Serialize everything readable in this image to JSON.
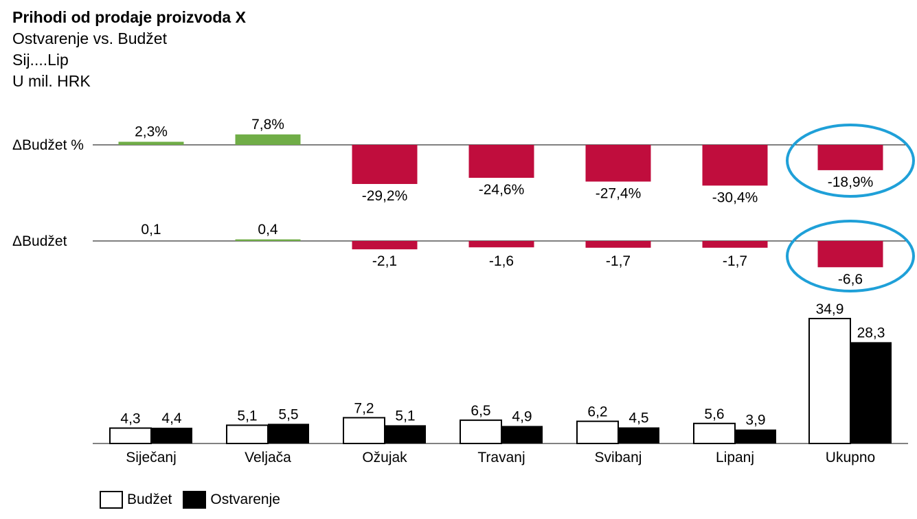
{
  "titles": {
    "main": "Prihodi od prodaje proizvoda X",
    "line2": "Ostvarenje vs. Budžet",
    "line3": "Sij....Lip",
    "line4": "U mil. HRK"
  },
  "legend": {
    "budget": "Budžet",
    "actual": "Ostvarenje"
  },
  "colors": {
    "positive": "#70ad47",
    "negative": "#c00d3d",
    "highlight": "#1fa0d8",
    "budget_fill": "#ffffff",
    "actual_fill": "#000000"
  },
  "chart_data": [
    {
      "type": "bar",
      "row_label": "ΔBudžet  %",
      "categories": [
        "Siječanj",
        "Veljača",
        "Ožujak",
        "Travanj",
        "Svibanj",
        "Lipanj",
        "Ukupno"
      ],
      "values": [
        2.3,
        7.8,
        -29.2,
        -24.6,
        -27.4,
        -30.4,
        -18.9
      ],
      "labels": [
        "2,3%",
        "7,8%",
        "-29,2%",
        "-24,6%",
        "-27,4%",
        "-30,4%",
        "-18,9%"
      ],
      "highlighted_category": "Ukupno"
    },
    {
      "type": "bar",
      "row_label": "ΔBudžet",
      "categories": [
        "Siječanj",
        "Veljača",
        "Ožujak",
        "Travanj",
        "Svibanj",
        "Lipanj",
        "Ukupno"
      ],
      "values": [
        0.1,
        0.4,
        -2.1,
        -1.6,
        -1.7,
        -1.7,
        -6.6
      ],
      "labels": [
        "0,1",
        "0,4",
        "-2,1",
        "-1,6",
        "-1,7",
        "-1,7",
        "-6,6"
      ],
      "highlighted_category": "Ukupno"
    },
    {
      "type": "bar",
      "categories": [
        "Siječanj",
        "Veljača",
        "Ožujak",
        "Travanj",
        "Svibanj",
        "Lipanj",
        "Ukupno"
      ],
      "series": [
        {
          "name": "Budžet",
          "values": [
            4.3,
            5.1,
            7.2,
            6.5,
            6.2,
            5.6,
            34.9
          ],
          "labels": [
            "4,3",
            "5,1",
            "7,2",
            "6,5",
            "6,2",
            "5,6",
            "34,9"
          ]
        },
        {
          "name": "Ostvarenje",
          "values": [
            4.4,
            5.5,
            5.1,
            4.9,
            4.5,
            3.9,
            28.3
          ],
          "labels": [
            "4,4",
            "5,5",
            "5,1",
            "4,9",
            "4,5",
            "3,9",
            "28,3"
          ]
        }
      ]
    }
  ]
}
